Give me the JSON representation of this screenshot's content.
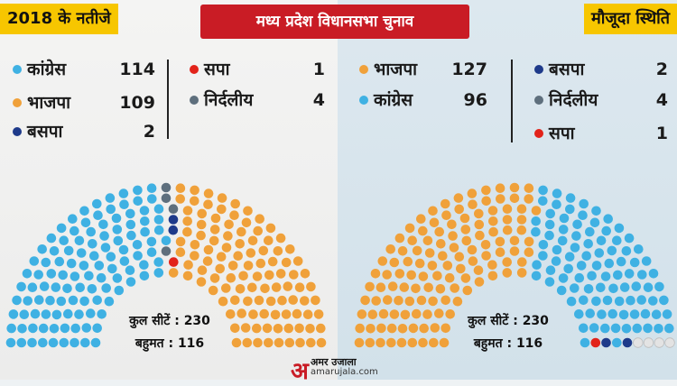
{
  "header": {
    "title": "मध्य प्रदेश विधानसभा चुनाव",
    "left_tag": "2018 के नतीजे",
    "right_tag": "मौजूदा स्थिति"
  },
  "colors": {
    "congress": "#3fb1e3",
    "bjp": "#f0a13a",
    "bsp": "#1e3a8a",
    "sp": "#e2231a",
    "independent": "#5e6f7d",
    "vacant": "#e3e3e3",
    "title_bg": "#c91c25",
    "tag_bg": "#f7c600"
  },
  "chart_data": [
    {
      "type": "parliament",
      "title": "2018 के नतीजे",
      "total_seats": 230,
      "series": [
        {
          "name": "कांग्रेस",
          "value": 114,
          "color": "#3fb1e3"
        },
        {
          "name": "भाजपा",
          "value": 109,
          "color": "#f0a13a"
        },
        {
          "name": "बसपा",
          "value": 2,
          "color": "#1e3a8a"
        },
        {
          "name": "सपा",
          "value": 1,
          "color": "#e2231a"
        },
        {
          "name": "निर्दलीय",
          "value": 4,
          "color": "#5e6f7d"
        }
      ],
      "seat_order": [
        "कांग्रेस",
        "निर्दलीय",
        "बसपा",
        "सपा",
        "vacant",
        "भाजपा"
      ],
      "center_text": {
        "total": "कुल सीटें : 230",
        "majority": "बहुमत : 116"
      }
    },
    {
      "type": "parliament",
      "title": "मौजूदा स्थिति",
      "total_seats": 230,
      "series": [
        {
          "name": "भाजपा",
          "value": 127,
          "color": "#f0a13a"
        },
        {
          "name": "कांग्रेस",
          "value": 96,
          "color": "#3fb1e3"
        },
        {
          "name": "बसपा",
          "value": 2,
          "color": "#1e3a8a"
        },
        {
          "name": "निर्दलीय",
          "value": 4,
          "color": "#5e6f7d"
        },
        {
          "name": "सपा",
          "value": 1,
          "color": "#e2231a"
        }
      ],
      "seat_order": [
        "भाजपा",
        "कांग्रेस",
        "सपा",
        "बसपा",
        "vacant"
      ],
      "center_text": {
        "total": "कुल सीटें : 230",
        "majority": "बहुमत : 116"
      }
    }
  ],
  "logo": {
    "name": "अमर उजाला",
    "url": "amarujala.com"
  }
}
